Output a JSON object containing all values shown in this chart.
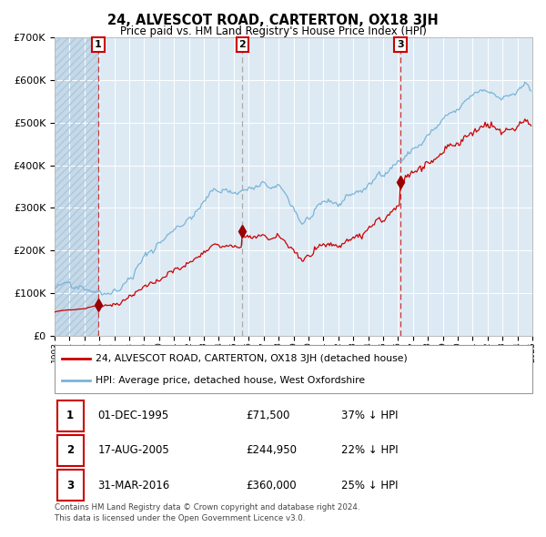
{
  "title": "24, ALVESCOT ROAD, CARTERTON, OX18 3JH",
  "subtitle": "Price paid vs. HM Land Registry's House Price Index (HPI)",
  "legend_line1": "24, ALVESCOT ROAD, CARTERTON, OX18 3JH (detached house)",
  "legend_line2": "HPI: Average price, detached house, West Oxfordshire",
  "transaction1_date": "01-DEC-1995",
  "transaction1_price": 71500,
  "transaction1_hpi": "37% ↓ HPI",
  "transaction2_date": "17-AUG-2005",
  "transaction2_price": 244950,
  "transaction2_hpi": "22% ↓ HPI",
  "transaction3_date": "31-MAR-2016",
  "transaction3_price": 360000,
  "transaction3_hpi": "25% ↓ HPI",
  "footer1": "Contains HM Land Registry data © Crown copyright and database right 2024.",
  "footer2": "This data is licensed under the Open Government Licence v3.0.",
  "hpi_color": "#7ab4d8",
  "price_color": "#cc0000",
  "marker_color": "#990000",
  "vline1_color": "#cc3333",
  "vline2_color": "#aaaaaa",
  "vline3_color": "#cc3333",
  "background_chart": "#ddeaf4",
  "background_hatch_color": "#c5d9e8",
  "hatch_line_color": "#b0c8dc",
  "ylim_min": 0,
  "ylim_max": 700000,
  "start_year": 1993,
  "end_year": 2025
}
